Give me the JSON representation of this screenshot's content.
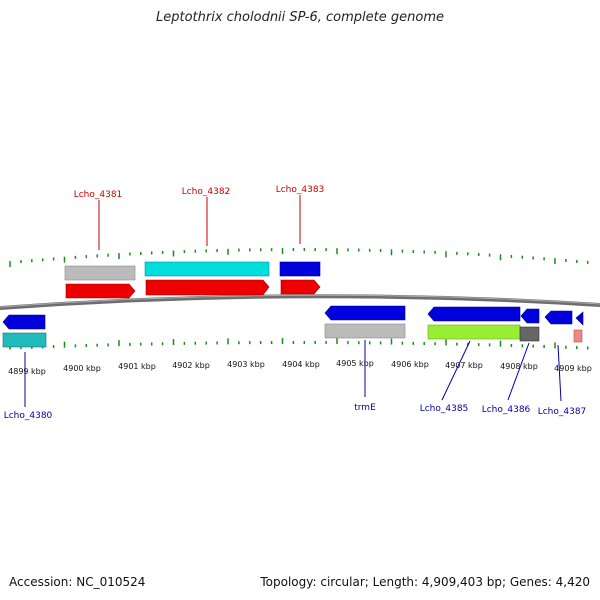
{
  "title": "Leptothrix cholodnii SP-6, complete genome",
  "footer": {
    "accession": "Accession: NC_010524",
    "summary": "Topology: circular; Length: 4,909,403 bp; Genes: 4,420"
  },
  "colors": {
    "strand_label_top": "#cc0000",
    "strand_label_bottom": "#0000aa",
    "tick": "#1a8c1a",
    "backbone": "#777777",
    "gene": "#0000dd",
    "cds_red": "#ee0000",
    "cds_cyan": "#00dddd",
    "gray": "#bbbbbb",
    "teal": "#22bbbb",
    "lime": "#99ee33",
    "dark_gray": "#666666",
    "pink": "#ee8888"
  },
  "ruler": {
    "ticks": [
      "4899 kbp",
      "4900 kbp",
      "4901 kbp",
      "4902 kbp",
      "4903 kbp",
      "4904 kbp",
      "4905 kbp",
      "4906 kbp",
      "4907 kbp",
      "4908 kbp",
      "4909 kbp"
    ]
  },
  "labels": {
    "top": [
      "Lcho_4381",
      "Lcho_4382",
      "Lcho_4383"
    ],
    "bottom": [
      "Lcho_4380",
      "trmE",
      "Lcho_4385",
      "Lcho_4386",
      "Lcho_4387"
    ]
  }
}
